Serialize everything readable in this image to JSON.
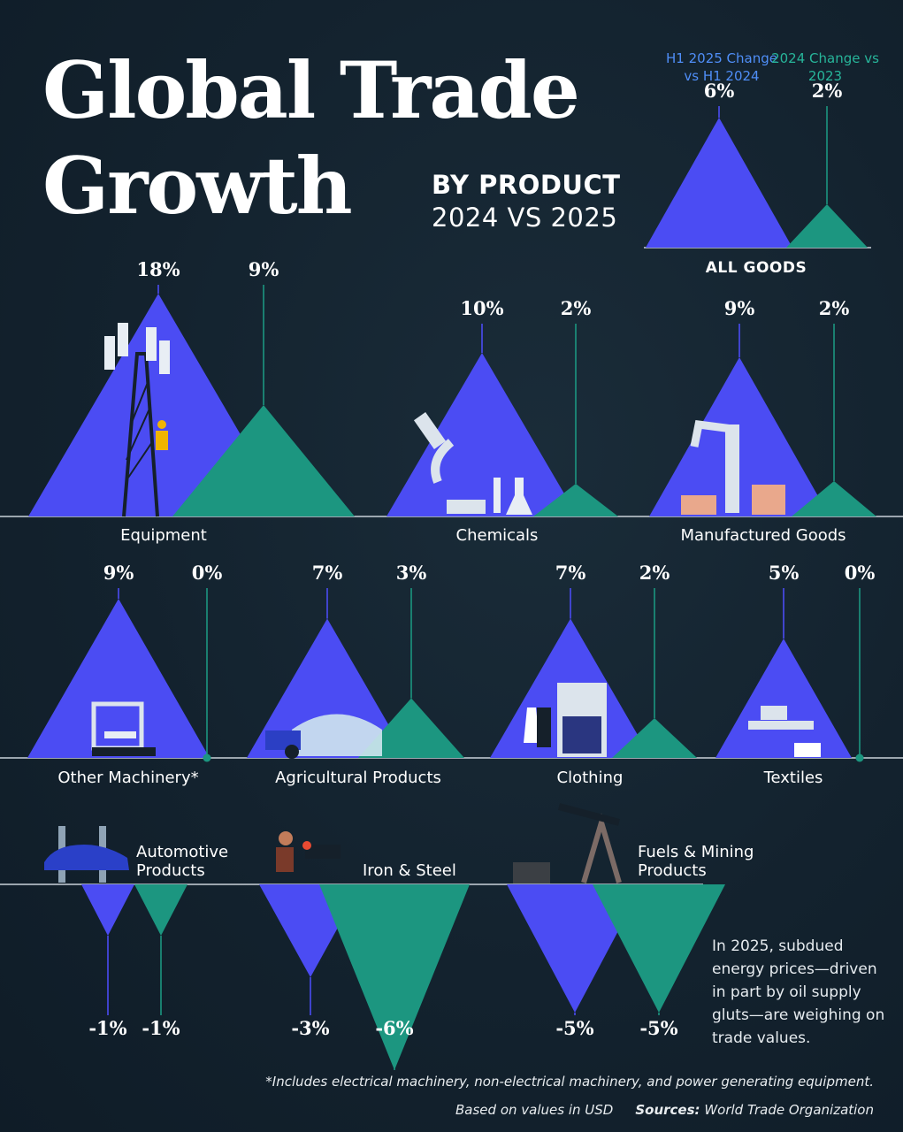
{
  "title_line1": "Global Trade",
  "title_line2": "Growth",
  "subtitle_line1": "BY PRODUCT",
  "subtitle_line2": "2024 VS 2025",
  "legend": {
    "h1_2025": "H1 2025 Change vs H1 2024",
    "y2024": "2024 Change vs 2023"
  },
  "colors": {
    "h1_2025": "#4b4cf3",
    "y2024": "#1c9680",
    "background": "#12212d"
  },
  "note": "In 2025, subdued energy prices—driven in part by oil supply gluts—are weighing on trade values.",
  "footnote": "*Includes electrical machinery, non-electrical machinery, and power generating equipment.",
  "basis": "Based on values in USD",
  "sources_label": "Sources:",
  "sources_value": "World Trade Organization",
  "chart_data": {
    "type": "bar",
    "title": "Global Trade Growth",
    "units": "%",
    "series": [
      {
        "name": "H1 2025 Change vs H1 2024"
      },
      {
        "name": "2024 Change vs 2023"
      }
    ],
    "categories": [
      {
        "name": "ALL GOODS",
        "h1_2025": 6,
        "y2024": 2,
        "labels": [
          "6%",
          "2%"
        ]
      },
      {
        "name": "Equipment",
        "h1_2025": 18,
        "y2024": 9,
        "labels": [
          "18%",
          "9%"
        ]
      },
      {
        "name": "Chemicals",
        "h1_2025": 10,
        "y2024": 2,
        "labels": [
          "10%",
          "2%"
        ]
      },
      {
        "name": "Manufactured Goods",
        "h1_2025": 9,
        "y2024": 2,
        "labels": [
          "9%",
          "2%"
        ]
      },
      {
        "name": "Other Machinery*",
        "h1_2025": 9,
        "y2024": 0,
        "labels": [
          "9%",
          "0%"
        ]
      },
      {
        "name": "Agricultural Products",
        "h1_2025": 7,
        "y2024": 3,
        "labels": [
          "7%",
          "3%"
        ]
      },
      {
        "name": "Clothing",
        "h1_2025": 7,
        "y2024": 2,
        "labels": [
          "7%",
          "2%"
        ]
      },
      {
        "name": "Textiles",
        "h1_2025": 5,
        "y2024": 0,
        "labels": [
          "5%",
          "0%"
        ]
      },
      {
        "name": "Automotive Products",
        "h1_2025": -1,
        "y2024": -1,
        "labels": [
          "-1%",
          "-1%"
        ]
      },
      {
        "name": "Iron & Steel",
        "h1_2025": -3,
        "y2024": -6,
        "labels": [
          "-3%",
          "-6%"
        ]
      },
      {
        "name": "Fuels & Mining Products",
        "h1_2025": -5,
        "y2024": -5,
        "labels": [
          "-5%",
          "-5%"
        ]
      }
    ]
  }
}
